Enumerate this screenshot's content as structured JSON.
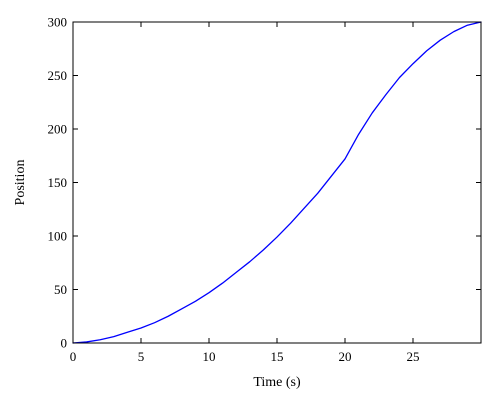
{
  "chart_data": {
    "type": "line",
    "title": "",
    "xlabel": "Time (s)",
    "ylabel": "Position",
    "xlim": [
      0,
      30
    ],
    "ylim": [
      0,
      300
    ],
    "x_ticks": [
      0,
      5,
      10,
      15,
      20,
      25
    ],
    "y_ticks": [
      0,
      50,
      100,
      150,
      200,
      250,
      300
    ],
    "x_tick_labels": [
      "0",
      "5",
      "10",
      "15",
      "20",
      "25"
    ],
    "y_tick_labels": [
      "0",
      "50",
      "100",
      "150",
      "200",
      "250",
      "300"
    ],
    "grid": false,
    "legend": "none",
    "series": [
      {
        "color": "#0000ff",
        "x": [
          0,
          1,
          2,
          3,
          4,
          5,
          6,
          7,
          8,
          9,
          10,
          11,
          12,
          13,
          14,
          15,
          16,
          17,
          18,
          19,
          20,
          21,
          22,
          23,
          24,
          25,
          26,
          27,
          28,
          29,
          30
        ],
        "y": [
          0,
          1,
          3,
          6,
          10,
          14,
          19,
          25,
          32,
          39,
          47,
          56,
          66,
          76,
          87,
          99,
          112,
          126,
          140,
          156,
          172,
          195,
          215,
          232,
          248,
          261,
          273,
          283,
          291,
          297,
          300
        ]
      }
    ]
  }
}
